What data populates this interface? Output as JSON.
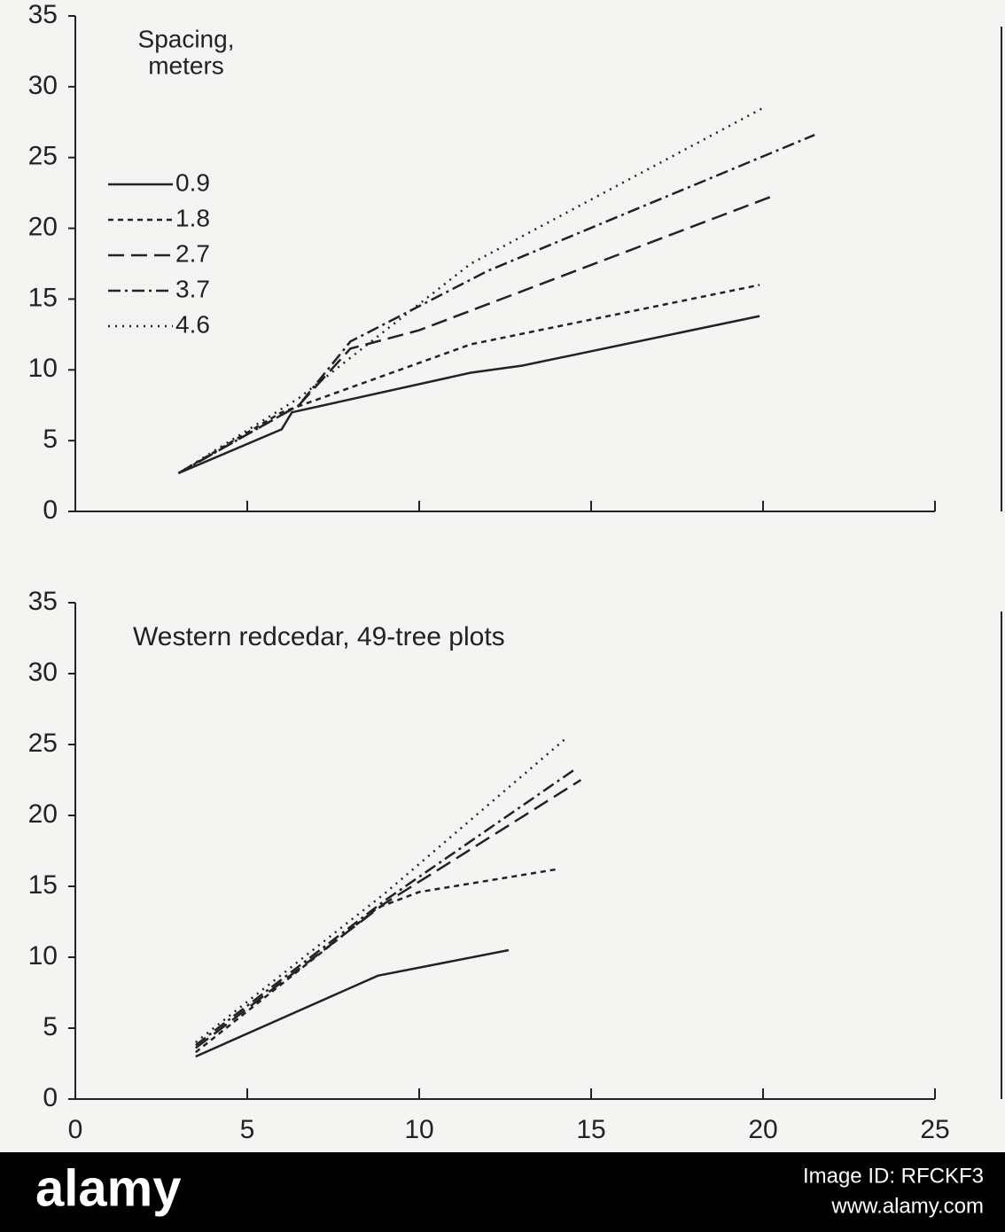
{
  "chart_data": [
    {
      "type": "line",
      "legend_title": [
        "Spacing,",
        "meters"
      ],
      "legend": "upper left",
      "show_xtick_labels": false,
      "xlim": [
        0,
        25
      ],
      "ylim": [
        0,
        35
      ],
      "xticks": [
        0,
        5,
        10,
        15,
        20,
        25
      ],
      "yticks": [
        0,
        5,
        10,
        15,
        20,
        25,
        30,
        35
      ],
      "series": [
        {
          "name": "0.9",
          "color": "#222222",
          "dash": "none",
          "x": [
            3.0,
            6.0,
            6.3,
            11.5,
            13,
            19.9
          ],
          "values": [
            2.7,
            5.8,
            7.0,
            9.8,
            10.3,
            13.8
          ]
        },
        {
          "name": "1.8",
          "color": "#222222",
          "dash": "6 5",
          "x": [
            3.0,
            6.0,
            11.5,
            19.9
          ],
          "values": [
            2.7,
            7.0,
            11.8,
            16.0
          ]
        },
        {
          "name": "2.7",
          "color": "#222222",
          "dash": "18 8",
          "x": [
            3.0,
            6.5,
            8,
            10,
            20.2
          ],
          "values": [
            2.7,
            7.5,
            11.5,
            12.8,
            22.2
          ]
        },
        {
          "name": "3.7",
          "color": "#222222",
          "dash": "14 5 3 5",
          "x": [
            3.0,
            6.5,
            8,
            12,
            21.5
          ],
          "values": [
            2.7,
            7.5,
            12.0,
            17.0,
            26.6
          ]
        },
        {
          "name": "4.6",
          "color": "#222222",
          "dash": "2 6",
          "x": [
            3.0,
            6.5,
            11.5,
            20
          ],
          "values": [
            2.7,
            8.0,
            17.5,
            28.5
          ]
        }
      ]
    },
    {
      "type": "line",
      "title": "Western redcedar, 49-tree plots",
      "show_xtick_labels": true,
      "xlim": [
        0,
        25
      ],
      "ylim": [
        0,
        35
      ],
      "xticks": [
        0,
        5,
        10,
        15,
        20,
        25
      ],
      "yticks": [
        0,
        5,
        10,
        15,
        20,
        25,
        30,
        35
      ],
      "series": [
        {
          "name": "0.9",
          "color": "#222222",
          "dash": "none",
          "x": [
            3.5,
            8.8,
            12.6
          ],
          "values": [
            3.0,
            8.7,
            10.5
          ]
        },
        {
          "name": "1.8",
          "color": "#222222",
          "dash": "6 5",
          "x": [
            3.5,
            8.8,
            10,
            14
          ],
          "values": [
            3.3,
            13.5,
            14.6,
            16.2
          ]
        },
        {
          "name": "2.7",
          "color": "#222222",
          "dash": "18 8",
          "x": [
            3.5,
            9,
            14.7
          ],
          "values": [
            3.6,
            13.8,
            22.5
          ]
        },
        {
          "name": "3.7",
          "color": "#222222",
          "dash": "14 5 3 5",
          "x": [
            3.5,
            9,
            14.5
          ],
          "values": [
            3.8,
            14.0,
            23.2
          ]
        },
        {
          "name": "4.6",
          "color": "#222222",
          "dash": "2 6",
          "x": [
            3.5,
            9,
            14.3
          ],
          "values": [
            4.0,
            14.5,
            25.5
          ]
        }
      ]
    }
  ],
  "watermark": {
    "brand": "alamy",
    "image_id": "Image ID: RFCKF3",
    "url": "www.alamy.com"
  }
}
